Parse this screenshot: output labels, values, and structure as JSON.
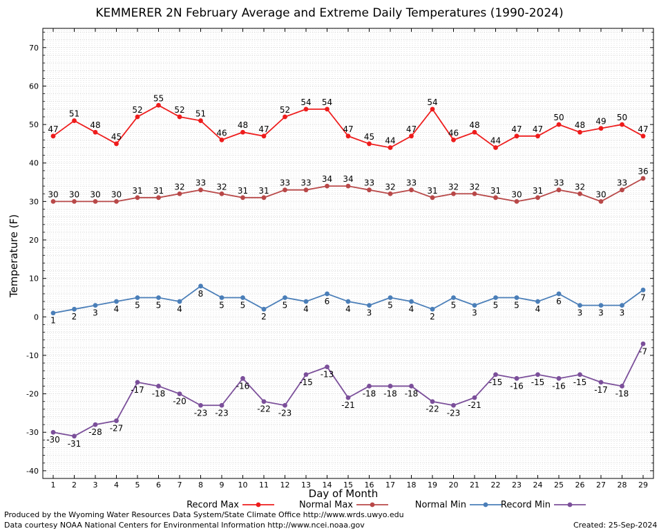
{
  "chart_data": {
    "type": "line",
    "title": "KEMMERER 2N February Average and Extreme Daily Temperatures (1990-2024)",
    "xlabel": "Day of Month",
    "ylabel": "Temperature (F)",
    "x": [
      1,
      2,
      3,
      4,
      5,
      6,
      7,
      8,
      9,
      10,
      11,
      12,
      13,
      14,
      15,
      16,
      17,
      18,
      19,
      20,
      21,
      22,
      23,
      24,
      25,
      26,
      27,
      28,
      29
    ],
    "ylim": [
      -42,
      75
    ],
    "yticks": [
      -40,
      -30,
      -20,
      -10,
      0,
      10,
      20,
      30,
      40,
      50,
      60,
      70
    ],
    "grid": true,
    "legend_position": "bottom",
    "series": [
      {
        "name": "Record Max",
        "color": "#ee1c1c",
        "values": [
          47,
          51,
          48,
          45,
          52,
          55,
          52,
          51,
          46,
          48,
          47,
          52,
          54,
          54,
          47,
          45,
          44,
          47,
          54,
          46,
          48,
          44,
          47,
          47,
          50,
          48,
          49,
          50,
          47
        ]
      },
      {
        "name": "Normal Max",
        "color": "#b84848",
        "values": [
          30,
          30,
          30,
          30,
          31,
          31,
          32,
          33,
          32,
          31,
          31,
          33,
          33,
          34,
          34,
          33,
          32,
          33,
          31,
          32,
          32,
          31,
          30,
          31,
          33,
          32,
          30,
          33,
          36
        ]
      },
      {
        "name": "Normal Min",
        "color": "#4a7eb8",
        "values": [
          1,
          2,
          3,
          4,
          5,
          5,
          4,
          8,
          5,
          5,
          2,
          5,
          4,
          6,
          4,
          3,
          5,
          4,
          2,
          5,
          3,
          5,
          5,
          4,
          6,
          3,
          3,
          3,
          7
        ]
      },
      {
        "name": "Record Min",
        "color": "#7b4f9a",
        "values": [
          -30,
          -31,
          -28,
          -27,
          -17,
          -18,
          -20,
          -23,
          -23,
          -16,
          -22,
          -23,
          -15,
          -13,
          -21,
          -18,
          -18,
          -18,
          -22,
          -23,
          -21,
          -15,
          -16,
          -15,
          -16,
          -15,
          -17,
          -18,
          -7
        ]
      }
    ]
  },
  "footer": {
    "produced_by": "Produced by the Wyoming Water Resources Data System/State Climate Office http://www.wrds.uwyo.edu",
    "data_courtesy": "Data courtesy NOAA National Centers for Environmental Information http://www.ncei.noaa.gov",
    "created": "Created:  25-Sep-2024"
  }
}
